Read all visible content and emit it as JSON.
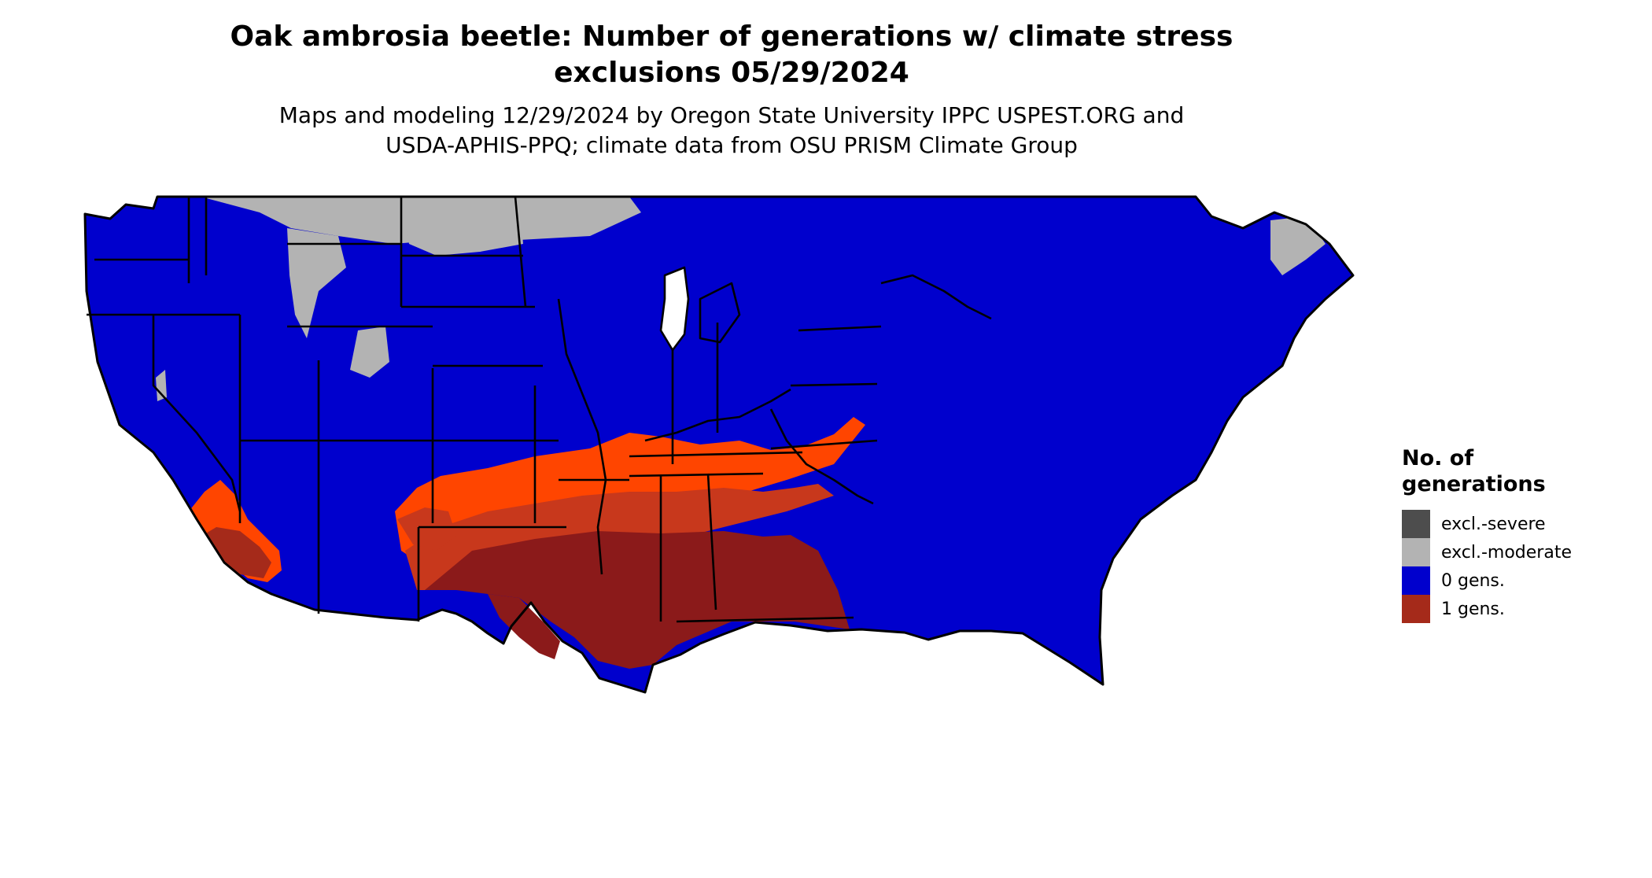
{
  "header": {
    "title_line1": "Oak ambrosia beetle: Number of generations w/ climate stress",
    "title_line2": "exclusions 05/29/2024",
    "subtitle_line1": "Maps and modeling 12/29/2024 by Oregon State University IPPC USPEST.ORG and",
    "subtitle_line2": "USDA-APHIS-PPQ; climate data from OSU PRISM Climate Group"
  },
  "legend": {
    "title_line1": "No. of",
    "title_line2": "generations",
    "items": [
      {
        "label": "excl.-severe",
        "color": "#4d4d4d"
      },
      {
        "label": "excl.-moderate",
        "color": "#b3b3b3"
      },
      {
        "label": "0 gens.",
        "color": "#0000cd"
      },
      {
        "label": "1 gens.",
        "color": "#a52a1a"
      }
    ]
  },
  "colors": {
    "zero_gens": "#0000cd",
    "excl_moderate": "#b3b3b3",
    "one_gen_light": "#ff4500",
    "one_gen_mid": "#c8381c",
    "one_gen_dark": "#8b1a1a",
    "state_border": "#000000"
  }
}
